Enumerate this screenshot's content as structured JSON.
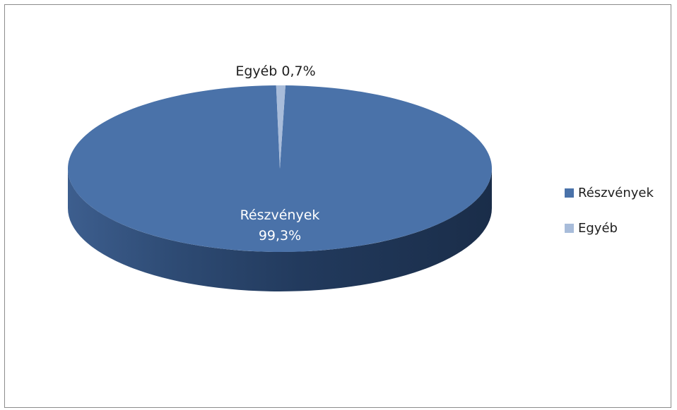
{
  "chart_data": {
    "type": "pie",
    "categories": [
      "Részvények",
      "Egyéb"
    ],
    "values": [
      99.3,
      0.7
    ],
    "unit": "%",
    "data_labels": [
      {
        "category": "Részvények",
        "value_text": "99,3%"
      },
      {
        "category": "Egyéb",
        "value_text": "0,7%"
      }
    ],
    "legend": {
      "position": "right",
      "entries": [
        {
          "label": "Részvények",
          "color": "#4a72a9"
        },
        {
          "label": "Egyéb",
          "color": "#a8bcda"
        }
      ]
    },
    "style": "3d"
  }
}
